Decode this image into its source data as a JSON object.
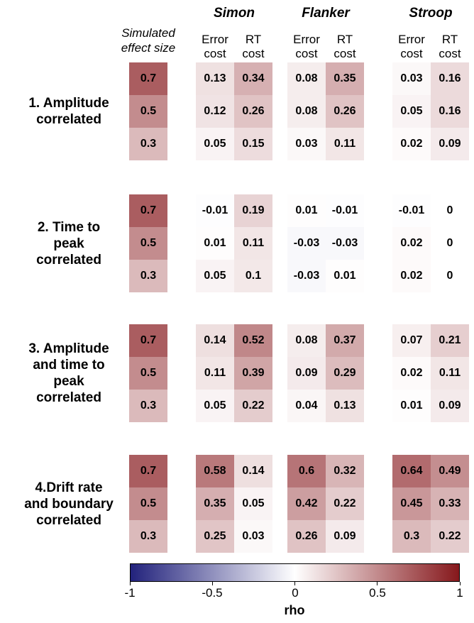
{
  "chart_data": {
    "type": "heatmap",
    "tasks": [
      "Simon",
      "Flanker",
      "Stroop"
    ],
    "measures": [
      "Error cost",
      "RT cost"
    ],
    "measure_labels": [
      [
        "Error",
        "cost"
      ],
      [
        "RT",
        "cost"
      ]
    ],
    "effect_size_header": [
      "Simulated",
      "effect size"
    ],
    "effect_sizes": [
      "0.7",
      "0.5",
      "0.3"
    ],
    "scenarios": [
      {
        "label": [
          "1. Amplitude",
          "correlated"
        ],
        "values": {
          "Simon": [
            [
              "0.13",
              "0.34"
            ],
            [
              "0.12",
              "0.26"
            ],
            [
              "0.05",
              "0.15"
            ]
          ],
          "Flanker": [
            [
              "0.08",
              "0.35"
            ],
            [
              "0.08",
              "0.26"
            ],
            [
              "0.03",
              "0.11"
            ]
          ],
          "Stroop": [
            [
              "0.03",
              "0.16"
            ],
            [
              "0.05",
              "0.16"
            ],
            [
              "0.02",
              "0.09"
            ]
          ]
        }
      },
      {
        "label": [
          "2. Time to",
          "peak",
          "correlated"
        ],
        "values": {
          "Simon": [
            [
              "-0.01",
              "0.19"
            ],
            [
              "0.01",
              "0.11"
            ],
            [
              "0.05",
              "0.1"
            ]
          ],
          "Flanker": [
            [
              "0.01",
              "-0.01"
            ],
            [
              "-0.03",
              "-0.03"
            ],
            [
              "-0.03",
              "0.01"
            ]
          ],
          "Stroop": [
            [
              "-0.01",
              "0"
            ],
            [
              "0.02",
              "0"
            ],
            [
              "0.02",
              "0"
            ]
          ]
        }
      },
      {
        "label": [
          "3. Amplitude",
          "and time to",
          "peak",
          "correlated"
        ],
        "values": {
          "Simon": [
            [
              "0.14",
              "0.52"
            ],
            [
              "0.11",
              "0.39"
            ],
            [
              "0.05",
              "0.22"
            ]
          ],
          "Flanker": [
            [
              "0.08",
              "0.37"
            ],
            [
              "0.09",
              "0.29"
            ],
            [
              "0.04",
              "0.13"
            ]
          ],
          "Stroop": [
            [
              "0.07",
              "0.21"
            ],
            [
              "0.02",
              "0.11"
            ],
            [
              "0.01",
              "0.09"
            ]
          ]
        }
      },
      {
        "label": [
          "4.Drift rate",
          "and boundary",
          "correlated"
        ],
        "values": {
          "Simon": [
            [
              "0.58",
              "0.14"
            ],
            [
              "0.35",
              "0.05"
            ],
            [
              "0.25",
              "0.03"
            ]
          ],
          "Flanker": [
            [
              "0.6",
              "0.32"
            ],
            [
              "0.42",
              "0.22"
            ],
            [
              "0.26",
              "0.09"
            ]
          ],
          "Stroop": [
            [
              "0.64",
              "0.49"
            ],
            [
              "0.45",
              "0.33"
            ],
            [
              "0.3",
              "0.22"
            ]
          ]
        }
      }
    ],
    "colorbar": {
      "label": "rho",
      "range": [
        -1,
        1
      ],
      "ticks": [
        "-1",
        "-0.5",
        "0",
        "0.5",
        "1"
      ],
      "colors": {
        "low": "#22227c",
        "mid": "#ffffff",
        "high": "#86181c"
      }
    }
  }
}
